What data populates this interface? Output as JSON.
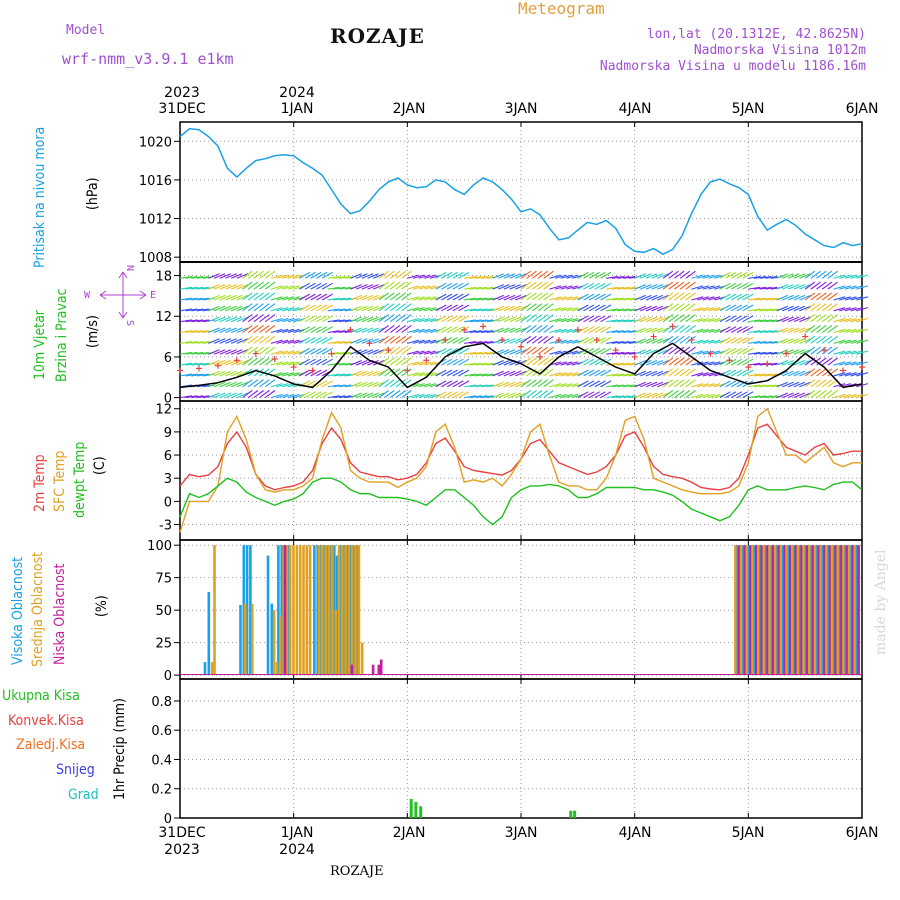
{
  "header": {
    "model_label": "Model",
    "model_name": "wrf-nmm_v3.9.1 e1km",
    "title": "ROZAJE",
    "meteogram": "Meteogram",
    "lonlat": "lon,lat (20.1312E, 42.8625N)",
    "altitude": "Nadmorska Visina 1012m",
    "model_altitude": "Nadmorska Visina u modelu 1186.16m",
    "footer_station": "ROZAJE",
    "watermark": "made by Angel"
  },
  "colors": {
    "pressure": "#1aa0e6",
    "wind_label": "#22c022",
    "wind_dir": "#b040d0",
    "t2m": "#e84040",
    "sfc": "#e0a020",
    "dewpt": "#20c020",
    "high_cloud": "#1aa0e6",
    "mid_cloud": "#e0a020",
    "low_cloud": "#c020a0",
    "total_precip": "#22c022",
    "conv": "#e84040",
    "frz": "#f07020",
    "snow": "#4040e0",
    "hail": "#20c0c0",
    "header_purple": "#a050d0",
    "header_orange": "#e0a040"
  },
  "time_axis": {
    "top_years": [
      "2023",
      "2024"
    ],
    "bottom_years": [
      "2023",
      "2024"
    ],
    "dates": [
      "31DEC",
      "1JAN",
      "2JAN",
      "3JAN",
      "4JAN",
      "5JAN",
      "6JAN"
    ]
  },
  "panels": {
    "pressure": {
      "label": "Pritisak na nivou mora",
      "unit": "(hPa)",
      "ticks": [
        "1008",
        "1012",
        "1016",
        "1020"
      ]
    },
    "wind": {
      "label1": "10m Vjetar",
      "label2": "Brzina i Pravac",
      "unit": "(m/s)",
      "ticks": [
        "0",
        "6",
        "12",
        "18"
      ],
      "compass_w": "W",
      "compass_e": "E",
      "compass_n": "N",
      "compass_s": "S"
    },
    "temp": {
      "label1": "2m Temp",
      "label2": "SFC Temp",
      "label3": "dewpt Temp",
      "unit": "(C)",
      "ticks": [
        "-3",
        "0",
        "3",
        "6",
        "9",
        "12"
      ]
    },
    "cloud": {
      "label1": "Visoka Oblacnost",
      "label2": "Srednja Oblacnost",
      "label3": "Niska Oblacnost",
      "unit": "(%)",
      "ticks": [
        "0",
        "25",
        "50",
        "75",
        "100"
      ]
    },
    "precip": {
      "unit": "1hr Precip (mm)",
      "ticks": [
        "0",
        "0.2",
        "0.4",
        "0.6",
        "0.8"
      ],
      "legend": [
        "Ukupna Kisa",
        "Konvek.Kisa",
        "Zaledj.Kisa",
        "Snijeg",
        "Grad"
      ]
    }
  },
  "chart_data": {
    "type": "line",
    "x_unit": "hours since 31DEC 00UTC",
    "xlim": [
      0,
      144
    ],
    "pressure": {
      "ylim": [
        1007.5,
        1022
      ],
      "x": [
        0,
        2,
        4,
        6,
        8,
        10,
        12,
        14,
        16,
        18,
        20,
        22,
        24,
        26,
        28,
        30,
        32,
        34,
        36,
        38,
        40,
        42,
        44,
        46,
        48,
        50,
        52,
        54,
        56,
        58,
        60,
        62,
        64,
        66,
        68,
        70,
        72,
        74,
        76,
        78,
        80,
        82,
        84,
        86,
        88,
        90,
        92,
        94,
        96,
        98,
        100,
        102,
        104,
        106,
        108,
        110,
        112,
        114,
        116,
        118,
        120,
        122,
        124,
        126,
        128,
        130,
        132,
        134,
        136,
        138,
        140,
        142,
        144
      ],
      "values": [
        1020.5,
        1021.3,
        1021.2,
        1020.5,
        1019.5,
        1017.2,
        1016.3,
        1017.2,
        1018.0,
        1018.2,
        1018.5,
        1018.6,
        1018.5,
        1017.8,
        1017.2,
        1016.5,
        1015.0,
        1013.5,
        1012.5,
        1012.8,
        1013.8,
        1015.0,
        1015.8,
        1016.2,
        1015.5,
        1015.2,
        1015.3,
        1016.0,
        1015.8,
        1015.0,
        1014.5,
        1015.5,
        1016.2,
        1015.8,
        1015.0,
        1014.0,
        1012.7,
        1013.0,
        1012.4,
        1011.0,
        1009.8,
        1010.0,
        1010.8,
        1011.6,
        1011.4,
        1011.8,
        1011.0,
        1009.3,
        1008.6,
        1008.5,
        1008.9,
        1008.3,
        1008.8,
        1010.2,
        1012.5,
        1014.5,
        1015.8,
        1016.1,
        1015.6,
        1015.2,
        1014.5,
        1012.2,
        1010.8,
        1011.4,
        1011.9,
        1011.3,
        1010.4,
        1009.8,
        1009.2,
        1009.0,
        1009.5,
        1009.2,
        1009.4
      ]
    },
    "wind": {
      "ylim": [
        -0.5,
        20
      ],
      "x": [
        0,
        4,
        8,
        12,
        16,
        20,
        24,
        28,
        32,
        36,
        40,
        44,
        48,
        52,
        56,
        60,
        64,
        68,
        72,
        76,
        80,
        84,
        88,
        92,
        96,
        100,
        104,
        108,
        112,
        116,
        120,
        124,
        128,
        132,
        136,
        140,
        144
      ],
      "values": [
        1.5,
        1.8,
        2.2,
        3.0,
        4.0,
        3.2,
        2.0,
        1.5,
        4.0,
        7.5,
        5.5,
        4.5,
        1.5,
        3.0,
        6.0,
        7.5,
        8.0,
        6.0,
        5.0,
        3.5,
        6.0,
        7.5,
        6.0,
        4.5,
        3.5,
        6.5,
        8.0,
        6.0,
        4.0,
        3.0,
        2.0,
        2.5,
        4.0,
        6.5,
        4.5,
        1.5,
        2.0
      ]
    },
    "temperature": {
      "ylim": [
        -5,
        13
      ],
      "x": [
        0,
        2,
        4,
        6,
        8,
        10,
        12,
        14,
        16,
        18,
        20,
        22,
        24,
        26,
        28,
        30,
        32,
        34,
        36,
        38,
        40,
        42,
        44,
        46,
        48,
        50,
        52,
        54,
        56,
        58,
        60,
        62,
        64,
        66,
        68,
        70,
        72,
        74,
        76,
        78,
        80,
        82,
        84,
        86,
        88,
        90,
        92,
        94,
        96,
        98,
        100,
        102,
        104,
        106,
        108,
        110,
        112,
        114,
        116,
        118,
        120,
        122,
        124,
        126,
        128,
        130,
        132,
        134,
        136,
        138,
        140,
        142,
        144
      ],
      "series": [
        {
          "name": "2m Temp",
          "values": [
            2,
            3.5,
            3.2,
            3.4,
            4.5,
            7.5,
            9,
            7,
            3.5,
            2,
            1.5,
            1.8,
            2,
            2.5,
            4,
            7.5,
            9.5,
            8,
            5,
            3.8,
            3.5,
            3.2,
            3.2,
            2.8,
            3,
            3.5,
            5,
            7.5,
            8.2,
            6.5,
            4.5,
            4,
            3.8,
            3.6,
            3.4,
            4,
            5.5,
            7.5,
            8,
            6.5,
            5,
            4.5,
            4,
            3.5,
            3.8,
            4.5,
            6,
            8.5,
            9,
            7,
            4.5,
            3.5,
            3.2,
            3,
            2.5,
            1.8,
            1.6,
            1.5,
            1.8,
            3,
            6,
            9.5,
            10,
            8.5,
            7,
            6.5,
            6,
            7,
            7.5,
            6,
            6.2,
            6.5,
            6.5
          ]
        },
        {
          "name": "SFC Temp",
          "values": [
            -4,
            0,
            0,
            0,
            2,
            9,
            11,
            8,
            3.5,
            1.5,
            1.2,
            1.5,
            1.5,
            2,
            3,
            8,
            11.5,
            9.5,
            4,
            3,
            2.5,
            2.5,
            2.5,
            1.8,
            2.5,
            3,
            4.5,
            9,
            10,
            7,
            2.5,
            2.8,
            2.5,
            3,
            2,
            3.5,
            5.5,
            9,
            10,
            6,
            2.5,
            2,
            2,
            1.5,
            1.5,
            3,
            6,
            10.5,
            11,
            8,
            3,
            2.5,
            2,
            1.5,
            1.2,
            1,
            1,
            1,
            1.2,
            2,
            5,
            11,
            12,
            9,
            6,
            6,
            5,
            6,
            7,
            5,
            4.5,
            5,
            5
          ]
        },
        {
          "name": "dewpt Temp",
          "values": [
            -2,
            1,
            0.5,
            1,
            2,
            3,
            2.5,
            1.2,
            0.5,
            0,
            -0.5,
            0,
            0.3,
            1,
            2.5,
            3,
            3,
            2.5,
            1.5,
            1,
            1,
            0.5,
            0.5,
            0.5,
            0.3,
            0,
            -0.5,
            0.5,
            1.5,
            1.5,
            0.5,
            -0.5,
            -2,
            -3,
            -2,
            0.5,
            1.5,
            2,
            2,
            2.2,
            2,
            1.5,
            0.5,
            0.5,
            1,
            1.8,
            1.8,
            1.8,
            1.8,
            1.5,
            1.5,
            1.2,
            0.8,
            0,
            -1,
            -1.5,
            -2,
            -2.5,
            -2,
            -0.5,
            1.5,
            2,
            1.5,
            1.5,
            1.5,
            1.8,
            2,
            1.8,
            1.5,
            2.2,
            2.5,
            2.5,
            1.5
          ]
        }
      ]
    },
    "cloud": {
      "ylim": [
        -3,
        104
      ],
      "high_bars": [
        [
          5,
          10
        ],
        [
          5.8,
          64
        ],
        [
          12.5,
          54
        ],
        [
          13.2,
          100
        ],
        [
          13.9,
          100
        ],
        [
          14.6,
          100
        ],
        [
          18.3,
          92
        ],
        [
          19.1,
          55
        ],
        [
          20.5,
          100
        ],
        [
          21.2,
          100
        ],
        [
          21.9,
          100
        ],
        [
          22.6,
          100
        ],
        [
          28.1,
          100
        ],
        [
          28.8,
          100
        ],
        [
          29.5,
          100
        ],
        [
          30.2,
          100
        ],
        [
          30.9,
          100
        ],
        [
          31.6,
          100
        ],
        [
          32.3,
          100
        ],
        [
          32.9,
          92
        ],
        [
          33.6,
          100
        ],
        [
          34.3,
          100
        ],
        [
          35,
          100
        ],
        [
          35.7,
          100
        ],
        [
          36.4,
          100
        ],
        [
          37.1,
          100
        ]
      ],
      "mid_bars": [
        [
          6.5,
          10
        ],
        [
          7,
          100
        ],
        [
          13.5,
          55
        ],
        [
          15,
          55
        ],
        [
          19.6,
          50
        ],
        [
          20.2,
          10
        ],
        [
          20.9,
          45
        ],
        [
          21.6,
          100
        ],
        [
          22.3,
          100
        ],
        [
          23,
          100
        ],
        [
          23.7,
          100
        ],
        [
          24.4,
          100
        ],
        [
          25.1,
          100
        ],
        [
          25.8,
          100
        ],
        [
          26.5,
          100
        ],
        [
          27.2,
          100
        ],
        [
          29.1,
          100
        ],
        [
          29.8,
          100
        ],
        [
          30.5,
          100
        ],
        [
          31.2,
          100
        ],
        [
          31.9,
          100
        ],
        [
          32.6,
          50
        ],
        [
          33.3,
          100
        ],
        [
          34,
          100
        ],
        [
          34.7,
          100
        ],
        [
          35.4,
          100
        ],
        [
          36.1,
          100
        ],
        [
          36.8,
          100
        ],
        [
          37.5,
          100
        ],
        [
          38.2,
          25
        ]
      ],
      "low_bars": [
        [
          21.9,
          100
        ],
        [
          36,
          8
        ],
        [
          40.5,
          8
        ],
        [
          41.7,
          8
        ],
        [
          42.2,
          12
        ]
      ],
      "late_period_start": 117,
      "late_period_end": 143
    },
    "precip": {
      "ylim": [
        0,
        0.95
      ],
      "bars": [
        [
          48.5,
          0.13
        ],
        [
          49.5,
          0.11
        ],
        [
          50.5,
          0.08
        ],
        [
          51.5,
          0.0
        ],
        [
          82.2,
          0.05
        ],
        [
          83.0,
          0.05
        ]
      ]
    }
  }
}
